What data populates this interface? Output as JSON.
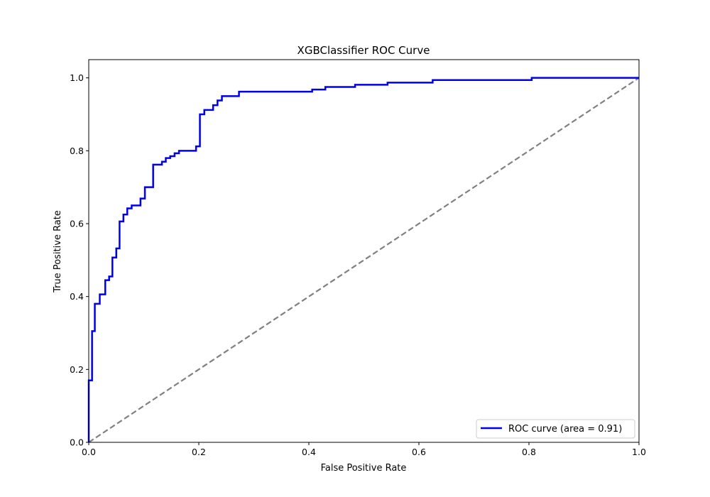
{
  "chart_data": {
    "type": "line",
    "title": "XGBClassifier ROC Curve",
    "xlabel": "False Positive Rate",
    "ylabel": "True Positive Rate",
    "xlim": [
      0.0,
      1.0
    ],
    "ylim": [
      0.0,
      1.05
    ],
    "xticks": [
      "0.0",
      "0.2",
      "0.4",
      "0.6",
      "0.8",
      "1.0"
    ],
    "yticks": [
      "0.0",
      "0.2",
      "0.4",
      "0.6",
      "0.8",
      "1.0"
    ],
    "grid": false,
    "legend_position": "lower-right",
    "series": [
      {
        "name": "ROC curve (area = 0.91)",
        "color": "#0000ee",
        "style": "solid",
        "x": [
          0.0,
          0.0,
          0.006,
          0.006,
          0.011,
          0.011,
          0.02,
          0.02,
          0.03,
          0.03,
          0.037,
          0.037,
          0.043,
          0.043,
          0.05,
          0.05,
          0.056,
          0.056,
          0.063,
          0.063,
          0.07,
          0.07,
          0.078,
          0.078,
          0.094,
          0.094,
          0.102,
          0.102,
          0.117,
          0.117,
          0.133,
          0.133,
          0.14,
          0.14,
          0.148,
          0.148,
          0.156,
          0.156,
          0.164,
          0.164,
          0.195,
          0.195,
          0.202,
          0.202,
          0.21,
          0.21,
          0.226,
          0.226,
          0.234,
          0.234,
          0.242,
          0.242,
          0.273,
          0.273,
          0.406,
          0.406,
          0.43,
          0.43,
          0.484,
          0.484,
          0.543,
          0.543,
          0.625,
          0.625,
          0.805,
          0.805,
          1.0
        ],
        "y": [
          0.0,
          0.17,
          0.17,
          0.305,
          0.305,
          0.38,
          0.38,
          0.406,
          0.406,
          0.445,
          0.445,
          0.455,
          0.455,
          0.507,
          0.507,
          0.532,
          0.532,
          0.606,
          0.606,
          0.625,
          0.625,
          0.642,
          0.642,
          0.65,
          0.65,
          0.669,
          0.669,
          0.7,
          0.7,
          0.762,
          0.762,
          0.77,
          0.77,
          0.78,
          0.78,
          0.785,
          0.785,
          0.793,
          0.793,
          0.8,
          0.8,
          0.812,
          0.812,
          0.9,
          0.9,
          0.912,
          0.912,
          0.925,
          0.925,
          0.938,
          0.938,
          0.95,
          0.95,
          0.962,
          0.962,
          0.968,
          0.968,
          0.975,
          0.975,
          0.981,
          0.981,
          0.987,
          0.987,
          0.994,
          0.994,
          1.0,
          1.0
        ]
      },
      {
        "color": "#808080",
        "style": "dashed",
        "x": [
          0.0,
          1.0
        ],
        "y": [
          0.0,
          1.0
        ]
      }
    ]
  }
}
